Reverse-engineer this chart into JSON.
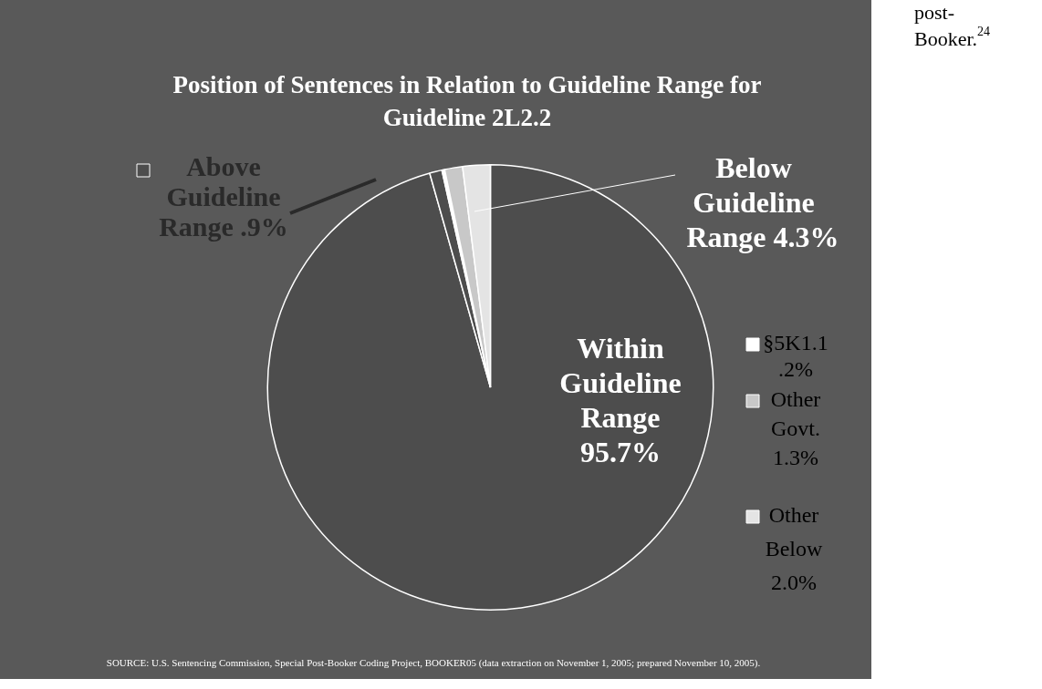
{
  "chart_data": {
    "type": "pie",
    "title": "Position of Sentences in Relation to Guideline Range for Guideline 2L2.2",
    "categories": [
      "Within Guideline Range",
      "Above Guideline Range",
      "§5K1.1",
      "Other Govt.",
      "Other Below"
    ],
    "values": [
      95.7,
      0.9,
      0.2,
      1.3,
      2.0
    ],
    "colors": [
      "#4d4d4d",
      "#4d4d4d",
      "#ffffff",
      "#c8c8c8",
      "#e4e4e4"
    ],
    "value_labels": [
      "95.7%",
      ".9%",
      ".2%",
      "1.3%",
      "2.0%"
    ],
    "annotations": [
      "Below Guideline Range 4.3%",
      "SOURCE: U.S. Sentencing Commission, Special Post-Booker Coding Project, BOOKER05 (data extraction on November 1, 2005; prepared November 10, 2005).",
      "post-Booker.$^{24}$"
    ],
    "legend": "right"
  }
}
